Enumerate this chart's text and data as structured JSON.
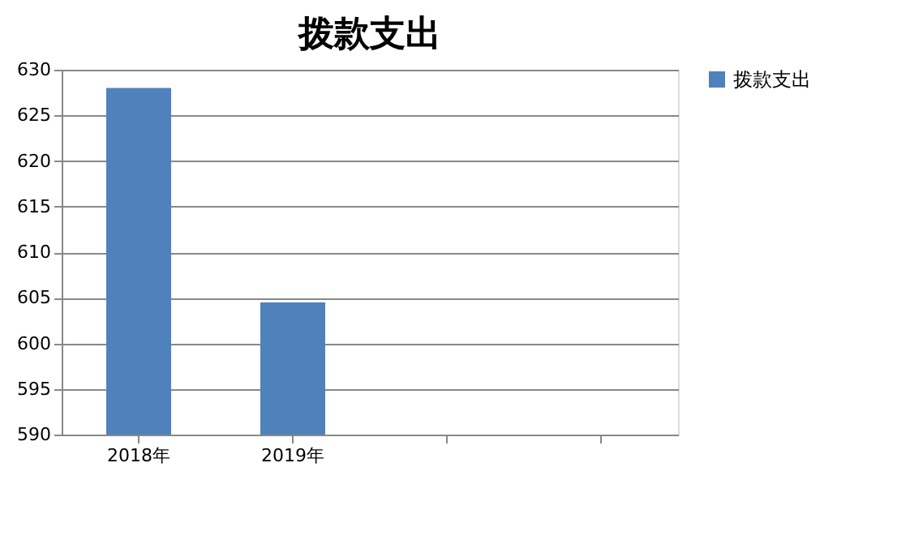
{
  "chart_data": {
    "type": "bar",
    "title": "拨款支出",
    "categories": [
      "2018年",
      "2019年",
      null,
      null
    ],
    "series": [
      {
        "name": "拨款支出",
        "color": "#4f81bd",
        "values": [
          628,
          604.5,
          null,
          null
        ]
      }
    ],
    "ylim": [
      590,
      630
    ],
    "yticks": [
      590,
      595,
      600,
      605,
      610,
      615,
      620,
      625,
      630
    ],
    "grid": "y",
    "legend": "right"
  }
}
